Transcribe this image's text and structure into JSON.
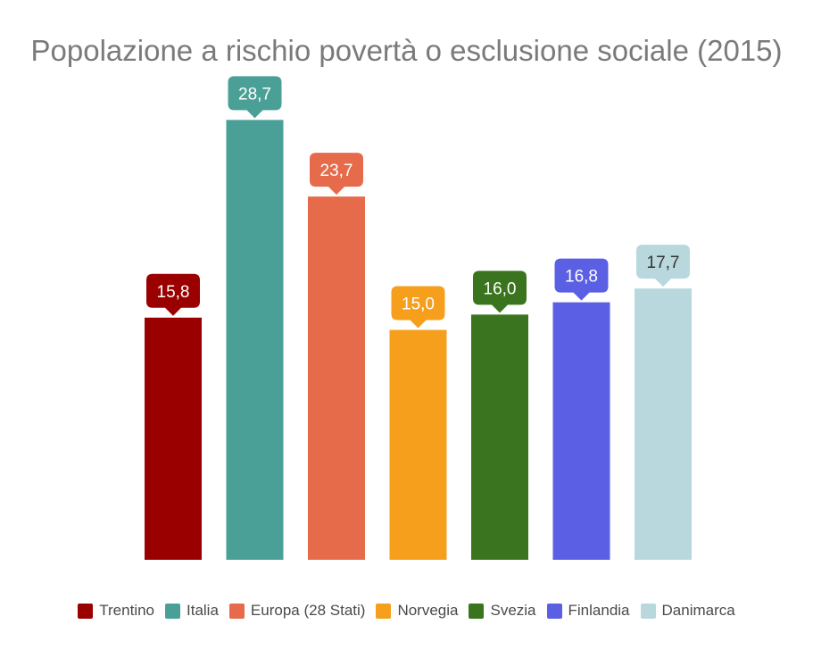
{
  "chart_data": {
    "type": "bar",
    "title": "Popolazione a rischio povertà o esclusione sociale (2015)",
    "categories": [
      "Trentino",
      "Italia",
      "Europa (28 Stati)",
      "Norvegia",
      "Svezia",
      "Finlandia",
      "Danimarca"
    ],
    "values": [
      15.8,
      28.7,
      23.7,
      15.0,
      16.0,
      16.8,
      17.7
    ],
    "value_labels": [
      "15,8",
      "28,7",
      "23,7",
      "15,0",
      "16,0",
      "16,8",
      "17,7"
    ],
    "colors": [
      "#9b0000",
      "#4aa097",
      "#e56b4b",
      "#f59f1c",
      "#3a741e",
      "#5b5fe3",
      "#b8d8de"
    ],
    "label_text_colors": [
      "#ffffff",
      "#ffffff",
      "#ffffff",
      "#ffffff",
      "#ffffff",
      "#ffffff",
      "#333333"
    ],
    "ylim": [
      0,
      30
    ],
    "grid": false,
    "legend_position": "bottom"
  }
}
